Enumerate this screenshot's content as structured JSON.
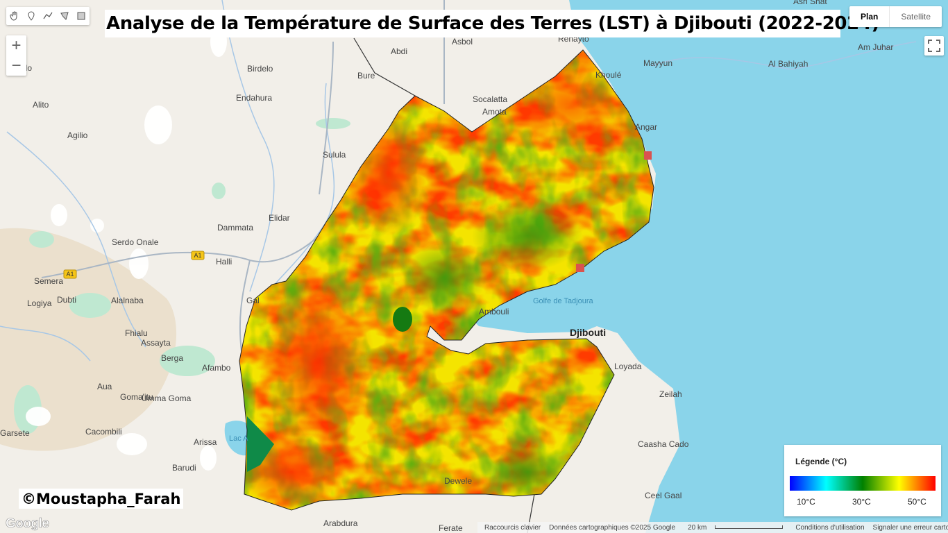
{
  "title": "Analyse de la Température de Surface des Terres (LST) à Djibouti (2022-2024)",
  "tools": [
    {
      "name": "hand-icon"
    },
    {
      "name": "marker-icon"
    },
    {
      "name": "line-icon"
    },
    {
      "name": "polygon-icon"
    },
    {
      "name": "rectangle-icon"
    }
  ],
  "zoom": {
    "in": "+",
    "out": "−"
  },
  "map_type": {
    "active": "Plan",
    "inactive": "Satellite"
  },
  "legend": {
    "title": "Légende (°C)",
    "min_label": "10°C",
    "mid_label": "30°C",
    "max_label": "50°C",
    "colors": [
      "#0000ff",
      "#00ffff",
      "#008000",
      "#ffff00",
      "#ff0000"
    ]
  },
  "credit": "©Moustapha_Farah",
  "google_logo": "Google",
  "footer": {
    "shortcuts": "Raccourcis clavier",
    "map_data": "Données cartographiques ©2025 Google",
    "scale": "20 km",
    "terms": "Conditions d'utilisation",
    "report": "Signaler une erreur cartographique"
  },
  "places": [
    {
      "text": "Ash Shat"
    },
    {
      "text": "Asbol"
    },
    {
      "text": "Abdi"
    },
    {
      "text": "Renayto"
    },
    {
      "text": "Mayyun"
    },
    {
      "text": "Am Juhar"
    },
    {
      "text": "Al Bahiyah"
    },
    {
      "text": "Birdelo"
    },
    {
      "text": "Bure"
    },
    {
      "text": "Endahura"
    },
    {
      "text": "Alito"
    },
    {
      "text": "Agilio"
    },
    {
      "text": "Sulula"
    },
    {
      "text": "Socalatta"
    },
    {
      "text": "Amota"
    },
    {
      "text": "Khoulé"
    },
    {
      "text": "Angar"
    },
    {
      "text": "Dammata"
    },
    {
      "text": "Elidar"
    },
    {
      "text": "Serdo Onale"
    },
    {
      "text": "Halli"
    },
    {
      "text": "Semera"
    },
    {
      "text": "Logiya"
    },
    {
      "text": "Dubti"
    },
    {
      "text": "Alalnaba"
    },
    {
      "text": "Fhialu"
    },
    {
      "text": "Assayta"
    },
    {
      "text": "Berga"
    },
    {
      "text": "Afambo"
    },
    {
      "text": "Aua"
    },
    {
      "text": "Goma'itu"
    },
    {
      "text": "Umma Goma"
    },
    {
      "text": "Garsete"
    },
    {
      "text": "Cacombili"
    },
    {
      "text": "Arissa"
    },
    {
      "text": "Barudi"
    },
    {
      "text": "Gal"
    },
    {
      "text": "Golfe de Tadjoura"
    },
    {
      "text": "Djibouti"
    },
    {
      "text": "Zeilah"
    },
    {
      "text": "Caasha Cado"
    },
    {
      "text": "Ceel Gaal"
    },
    {
      "text": "Dewele"
    },
    {
      "text": "Arabdura"
    },
    {
      "text": "Ferate"
    },
    {
      "text": "Lac A"
    },
    {
      "text": "Ambouli"
    },
    {
      "text": "ado"
    },
    {
      "text": "Loyada"
    }
  ],
  "roads": [
    {
      "text": "A1"
    },
    {
      "text": "A1"
    }
  ]
}
